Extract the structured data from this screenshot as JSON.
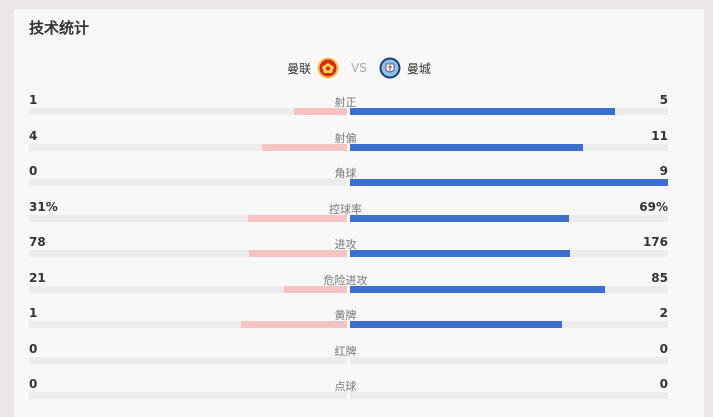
{
  "title": "技术统计",
  "home_team": {
    "name": "曼联",
    "crest_icon": "manutd-crest-icon"
  },
  "away_team": {
    "name": "曼城",
    "crest_icon": "mancity-crest-icon"
  },
  "vs_label": "VS",
  "colors": {
    "home_fill": "#f6c3c2",
    "away_fill": "#3a6fcf",
    "track": "#ececec"
  },
  "stats": [
    {
      "label": "射正",
      "home": "1",
      "away": "5",
      "home_share": 0.167,
      "away_share": 0.833
    },
    {
      "label": "射偏",
      "home": "4",
      "away": "11",
      "home_share": 0.267,
      "away_share": 0.733
    },
    {
      "label": "角球",
      "home": "0",
      "away": "9",
      "home_share": 0.0,
      "away_share": 1.0
    },
    {
      "label": "控球率",
      "home": "31%",
      "away": "69%",
      "home_share": 0.31,
      "away_share": 0.69
    },
    {
      "label": "进攻",
      "home": "78",
      "away": "176",
      "home_share": 0.307,
      "away_share": 0.693
    },
    {
      "label": "危险进攻",
      "home": "21",
      "away": "85",
      "home_share": 0.198,
      "away_share": 0.802
    },
    {
      "label": "黄牌",
      "home": "1",
      "away": "2",
      "home_share": 0.333,
      "away_share": 0.667
    },
    {
      "label": "红牌",
      "home": "0",
      "away": "0",
      "home_share": 0.0,
      "away_share": 0.0
    },
    {
      "label": "点球",
      "home": "0",
      "away": "0",
      "home_share": 0.0,
      "away_share": 0.0
    }
  ]
}
